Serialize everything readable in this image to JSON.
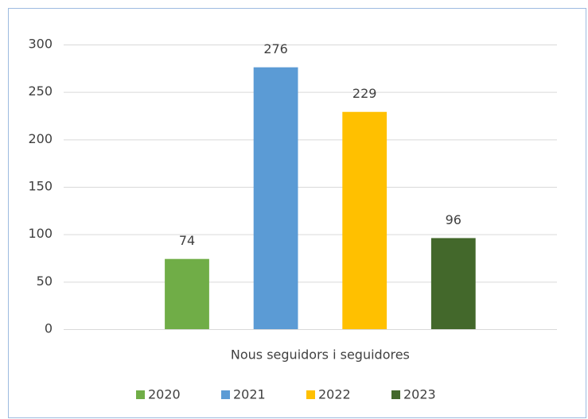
{
  "chart_data": {
    "type": "bar",
    "categories": [
      "Nous seguidors i seguidores"
    ],
    "series": [
      {
        "name": "2020",
        "color": "#70ad47",
        "values": [
          74
        ]
      },
      {
        "name": "2021",
        "color": "#5b9bd5",
        "values": [
          276
        ]
      },
      {
        "name": "2022",
        "color": "#ffc000",
        "values": [
          229
        ]
      },
      {
        "name": "2023",
        "color": "#43682b",
        "values": [
          96
        ]
      }
    ],
    "ylim": [
      0,
      300
    ],
    "yticks": [
      0,
      50,
      100,
      150,
      200,
      250,
      300
    ],
    "grid": true,
    "data_labels": true,
    "legend": "bottom"
  }
}
